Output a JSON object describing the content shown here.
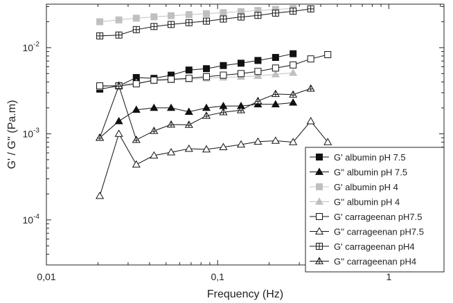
{
  "chart_data": {
    "type": "scatter",
    "xlabel": "Frequency (Hz)",
    "ylabel": "G' / G'' (Pa.m)",
    "x_scale": "log",
    "y_scale": "log",
    "xlim": [
      0.01,
      2.1
    ],
    "ylim": [
      3e-05,
      0.032
    ],
    "x_ticks": [
      {
        "value": 0.01,
        "label": "0,01"
      },
      {
        "value": 0.1,
        "label": "0,1"
      },
      {
        "value": 1,
        "label": "1"
      }
    ],
    "y_ticks": [
      {
        "value": 0.0001,
        "base": "10",
        "exp": "-4"
      },
      {
        "value": 0.001,
        "base": "10",
        "exp": "-3"
      },
      {
        "value": 0.01,
        "base": "10",
        "exp": "-2"
      }
    ],
    "grid": false,
    "legend_position": "bottom-right",
    "series": [
      {
        "name": "G' albumin  pH 7.5",
        "marker": "square-filled",
        "color": "#111111",
        "x": [
          0.0205,
          0.0265,
          0.0335,
          0.0425,
          0.0535,
          0.068,
          0.086,
          0.108,
          0.137,
          0.172,
          0.218,
          0.276
        ],
        "y": [
          0.0033,
          0.0036,
          0.0045,
          0.0044,
          0.0048,
          0.0055,
          0.0057,
          0.0062,
          0.0066,
          0.0071,
          0.0077,
          0.0085
        ]
      },
      {
        "name": "G'' albumin pH 7.5",
        "marker": "triangle-filled",
        "color": "#111111",
        "x": [
          0.0205,
          0.0265,
          0.0335,
          0.0425,
          0.0535,
          0.068,
          0.086,
          0.108,
          0.137,
          0.172,
          0.218,
          0.276
        ],
        "y": [
          0.0009,
          0.0014,
          0.0019,
          0.002,
          0.002,
          0.0018,
          0.002,
          0.0021,
          0.0021,
          0.0022,
          0.0022,
          0.0023
        ]
      },
      {
        "name": "G' albumin pH 4",
        "marker": "square-filled",
        "color": "#c0c0c0",
        "x": [
          0.0205,
          0.0265,
          0.0335,
          0.0425,
          0.0535,
          0.068,
          0.086,
          0.108,
          0.137,
          0.172,
          0.218,
          0.276
        ],
        "y": [
          0.02,
          0.021,
          0.022,
          0.0228,
          0.0235,
          0.0242,
          0.0248,
          0.0255,
          0.0262,
          0.027,
          0.0278,
          0.0285
        ]
      },
      {
        "name": "G'' albumin pH 4",
        "marker": "triangle-filled",
        "color": "#c0c0c0",
        "x": [
          0.0205,
          0.0265,
          0.0335,
          0.0425,
          0.0535,
          0.068,
          0.086,
          0.108,
          0.137,
          0.172,
          0.218,
          0.276
        ],
        "y": [
          0.0035,
          0.0037,
          0.0039,
          0.0041,
          0.0042,
          0.0043,
          0.0044,
          0.0045,
          0.0046,
          0.0047,
          0.0049,
          0.0051
        ]
      },
      {
        "name": "G' carrageenan pH7.5",
        "marker": "square-open",
        "color": "#111111",
        "x": [
          0.0205,
          0.0265,
          0.0335,
          0.0425,
          0.0535,
          0.068,
          0.086,
          0.108,
          0.137,
          0.172,
          0.218,
          0.276,
          0.35,
          0.44
        ],
        "y": [
          0.0036,
          0.0036,
          0.0038,
          0.0042,
          0.0043,
          0.0044,
          0.0046,
          0.0048,
          0.005,
          0.0053,
          0.0058,
          0.0063,
          0.0074,
          0.0083
        ]
      },
      {
        "name": "G'' carrageenan pH7.5",
        "marker": "triangle-open",
        "color": "#111111",
        "x": [
          0.0205,
          0.0265,
          0.0335,
          0.0425,
          0.0535,
          0.068,
          0.086,
          0.108,
          0.137,
          0.172,
          0.218,
          0.276,
          0.35,
          0.44
        ],
        "y": [
          0.00019,
          0.001,
          0.00044,
          0.00056,
          0.00061,
          0.00067,
          0.00066,
          0.0007,
          0.00075,
          0.00081,
          0.00083,
          0.0008,
          0.0014,
          0.0008
        ]
      },
      {
        "name": "G' carrageenan pH4",
        "marker": "square-plus",
        "color": "#111111",
        "x": [
          0.0205,
          0.0265,
          0.0335,
          0.0425,
          0.0535,
          0.068,
          0.086,
          0.108,
          0.137,
          0.172,
          0.218,
          0.276,
          0.35
        ],
        "y": [
          0.0137,
          0.014,
          0.0162,
          0.0176,
          0.0186,
          0.0195,
          0.0203,
          0.0215,
          0.0227,
          0.0237,
          0.0252,
          0.0265,
          0.0282
        ]
      },
      {
        "name": "G'' carrageenan pH4",
        "marker": "triangle-plus",
        "color": "#111111",
        "x": [
          0.0205,
          0.0265,
          0.0335,
          0.0425,
          0.0535,
          0.068,
          0.086,
          0.108,
          0.137,
          0.172,
          0.218,
          0.276,
          0.35
        ],
        "y": [
          0.0009,
          0.0036,
          0.00085,
          0.00108,
          0.00128,
          0.00127,
          0.00162,
          0.00178,
          0.00188,
          0.0024,
          0.0029,
          0.00285,
          0.00335
        ]
      }
    ]
  }
}
